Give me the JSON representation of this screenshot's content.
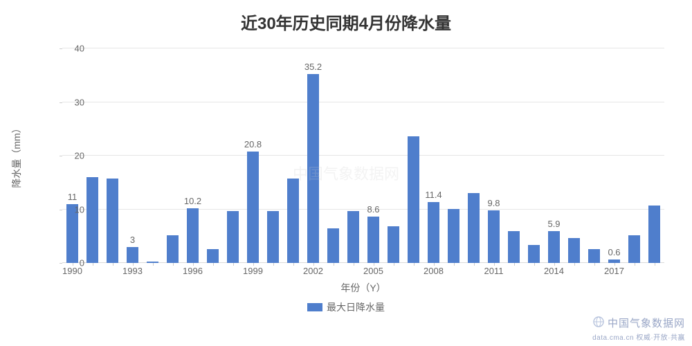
{
  "title": "近30年历史同期4月份降水量",
  "title_fontsize": 24,
  "xlabel": "年份（Y）",
  "ylabel": "降水量（mm）",
  "axis_label_fontsize": 14,
  "tick_fontsize": 13,
  "legend": {
    "label": "最大日降水量",
    "fontsize": 14
  },
  "chart": {
    "type": "bar",
    "bar_color": "#4f7ecc",
    "background_color": "#ffffff",
    "grid_color": "#e6e6e6",
    "axis_color": "#d9d9d9",
    "text_color": "#666666",
    "title_color": "#333333",
    "ylim": [
      0,
      40
    ],
    "ytick_step": 10,
    "x_start": 1990,
    "x_end": 2019,
    "xtick_step": 3,
    "bar_width_ratio": 0.62,
    "years": [
      1990,
      1991,
      1992,
      1993,
      1994,
      1995,
      1996,
      1997,
      1998,
      1999,
      2000,
      2001,
      2002,
      2003,
      2004,
      2005,
      2006,
      2007,
      2008,
      2009,
      2010,
      2011,
      2012,
      2013,
      2014,
      2015,
      2016,
      2017,
      2018,
      2019
    ],
    "values": [
      11,
      16,
      15.7,
      3,
      0.3,
      5.2,
      10.2,
      2.6,
      9.7,
      20.8,
      9.7,
      15.7,
      35.2,
      6.5,
      9.7,
      8.6,
      6.8,
      23.6,
      11.4,
      10.1,
      13,
      9.8,
      6,
      3.3,
      5.9,
      4.7,
      2.6,
      0.6,
      5.1,
      10.7
    ],
    "value_labels": {
      "1990": "11",
      "1993": "3",
      "1996": "10.2",
      "1999": "20.8",
      "2002": "35.2",
      "2005": "8.6",
      "2008": "11.4",
      "2011": "9.8",
      "2014": "5.9",
      "2017": "0.6"
    },
    "value_label_fontsize": 13
  },
  "watermark_center": "中国气象数据网",
  "source": {
    "main": "中国气象数据网",
    "sub": "data.cma.cn 权威·开放·共赢"
  }
}
